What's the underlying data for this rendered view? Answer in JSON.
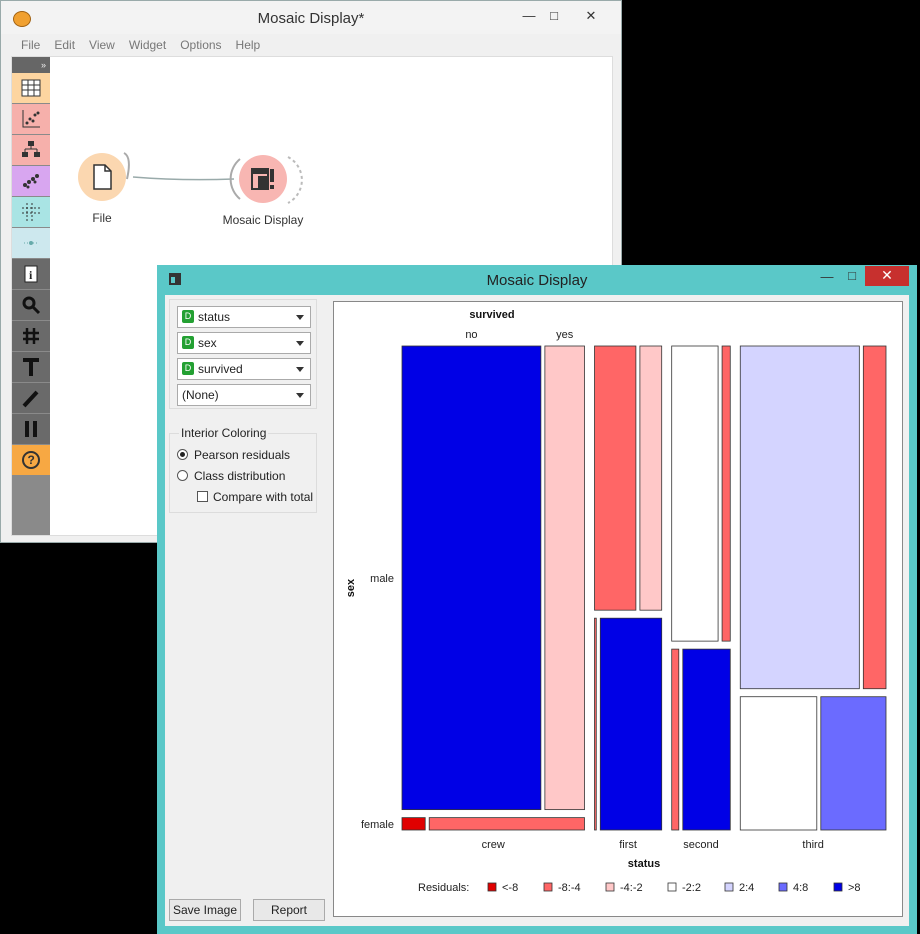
{
  "canvas_window": {
    "title": "Mosaic Display*",
    "controls": {
      "minimize": "—",
      "maximize": "□",
      "close": "✕"
    },
    "menu": [
      "File",
      "Edit",
      "View",
      "Widget",
      "Options",
      "Help"
    ],
    "toolbox_expand": "»",
    "toolbox": [
      {
        "name": "data-table-icon",
        "color": "#fdd5a0"
      },
      {
        "name": "scatter-plot-icon",
        "color": "#f6b0ab"
      },
      {
        "name": "tree-icon",
        "color": "#f6b0ab"
      },
      {
        "name": "clusters-icon",
        "color": "#d8a6f0"
      },
      {
        "name": "heatmap-grid-icon",
        "color": "#a9e4e4"
      },
      {
        "name": "distance-icon",
        "color": "#cde8ee"
      },
      {
        "name": "info-icon",
        "color": "#6a6a6a"
      },
      {
        "name": "magnifier-icon",
        "color": "#6a6a6a"
      },
      {
        "name": "hash-icon",
        "color": "#6a6a6a"
      },
      {
        "name": "text-icon",
        "color": "#6a6a6a"
      },
      {
        "name": "pen-icon",
        "color": "#6a6a6a"
      },
      {
        "name": "pause-icon",
        "color": "#6a6a6a"
      },
      {
        "name": "help-icon",
        "color": "#f7a843"
      }
    ],
    "nodes": {
      "file": {
        "label": "File",
        "color": "#fbd7b0"
      },
      "mosaic": {
        "label": "Mosaic Display",
        "color": "#f8b6b2"
      }
    }
  },
  "mosaic_window": {
    "title": "Mosaic Display",
    "controls": {
      "minimize": "—",
      "maximize": "□",
      "close": "✕"
    },
    "variables": [
      {
        "badge": "D",
        "value": "status"
      },
      {
        "badge": "D",
        "value": "sex"
      },
      {
        "badge": "D",
        "value": "survived"
      },
      {
        "badge": "",
        "value": "(None)"
      }
    ],
    "interior_coloring": {
      "title": "Interior Coloring",
      "options": [
        {
          "label": "Pearson residuals",
          "selected": true
        },
        {
          "label": "Class distribution",
          "selected": false
        }
      ],
      "compare_with_total": {
        "label": "Compare with total",
        "checked": false
      }
    },
    "buttons": {
      "save_image": "Save Image",
      "report": "Report"
    }
  },
  "chart_data": {
    "type": "mosaic",
    "variables": {
      "x": "status",
      "y": "sex",
      "inner": "survived"
    },
    "labels": {
      "inner_title": "survived",
      "x_title": "status",
      "y_title": "sex"
    },
    "inner_categories": [
      "no",
      "yes"
    ],
    "status_categories": [
      "crew",
      "first",
      "second",
      "third"
    ],
    "sex_categories": [
      "male",
      "female"
    ],
    "residual_legend": {
      "title": "Residuals:",
      "bins": [
        {
          "label": "<-8",
          "color": "#e00000"
        },
        {
          "label": "-8:-4",
          "color": "#ff6666"
        },
        {
          "label": "-4:-2",
          "color": "#ffc8c8"
        },
        {
          "label": "-2:2",
          "color": "#ffffff"
        },
        {
          "label": "2:4",
          "color": "#d4d4ff"
        },
        {
          "label": "4:8",
          "color": "#6b6bff"
        },
        {
          "label": ">8",
          "color": "#0000e6"
        }
      ]
    },
    "status_proportions": [
      0.402,
      0.148,
      0.129,
      0.321
    ],
    "cells": [
      {
        "status": "crew",
        "sex": "male",
        "male_fraction": 0.974,
        "no_fraction": 0.778,
        "colors": [
          "#0000e6",
          "#ffc8c8"
        ]
      },
      {
        "status": "crew",
        "sex": "female",
        "no_fraction": 0.13,
        "colors": [
          "#e00000",
          "#ff6666"
        ]
      },
      {
        "status": "first",
        "sex": "male",
        "male_fraction": 0.555,
        "no_fraction": 0.655,
        "colors": [
          "#ff6666",
          "#ffc8c8"
        ]
      },
      {
        "status": "first",
        "sex": "female",
        "no_fraction": 0.028,
        "colors": [
          "#ff6666",
          "#0000e6"
        ]
      },
      {
        "status": "second",
        "sex": "male",
        "male_fraction": 0.62,
        "no_fraction": 0.85,
        "colors": [
          "#ffffff",
          "#ff6666"
        ]
      },
      {
        "status": "second",
        "sex": "female",
        "no_fraction": 0.13,
        "colors": [
          "#ff6666",
          "#0000e6"
        ]
      },
      {
        "status": "third",
        "sex": "male",
        "male_fraction": 0.72,
        "no_fraction": 0.84,
        "colors": [
          "#d4d4ff",
          "#ff6666"
        ]
      },
      {
        "status": "third",
        "sex": "female",
        "no_fraction": 0.54,
        "colors": [
          "#ffffff",
          "#6b6bff"
        ]
      }
    ]
  }
}
